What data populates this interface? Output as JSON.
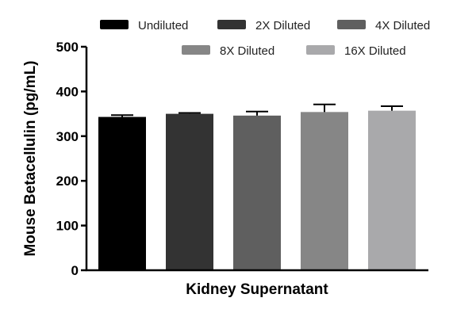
{
  "chart_data": {
    "type": "bar",
    "xlabel": "Kidney Supernatant",
    "ylabel": "Mouse Betacellulin (pg/mL)",
    "ylim": [
      0,
      500
    ],
    "yticks": [
      "0",
      "100",
      "200",
      "300",
      "400",
      "500"
    ],
    "legend_position": "top",
    "grid": false,
    "series": [
      {
        "name": "Undiluted",
        "value": 343,
        "error": 4,
        "color": "#000000"
      },
      {
        "name": "2X Diluted",
        "value": 350,
        "error": 2,
        "color": "#333333"
      },
      {
        "name": "4X Diluted",
        "value": 346,
        "error": 9,
        "color": "#5f5f5f"
      },
      {
        "name": "8X Diluted",
        "value": 354,
        "error": 17,
        "color": "#868686"
      },
      {
        "name": "16X Diluted",
        "value": 357,
        "error": 10,
        "color": "#a9a9ab"
      }
    ]
  }
}
